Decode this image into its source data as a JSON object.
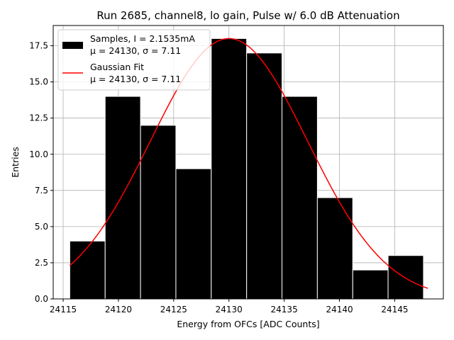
{
  "chart_data": {
    "type": "bar",
    "title": "Run 2685, channel8, lo gain, Pulse w/ 6.0 dB Attenuation",
    "xlabel": "Energy from OFCs [ADC Counts]",
    "ylabel": "Entries",
    "xlim": [
      24114.1,
      24149.4
    ],
    "ylim": [
      0,
      18.9
    ],
    "grid": true,
    "legend_position": "top-left",
    "x_ticks": [
      24115,
      24120,
      24125,
      24130,
      24135,
      24140,
      24145
    ],
    "x_tick_labels": [
      "24115",
      "24120",
      "24125",
      "24130",
      "24135",
      "24140",
      "24145"
    ],
    "y_ticks": [
      0,
      2.5,
      5,
      7.5,
      10,
      12.5,
      15,
      17.5
    ],
    "y_tick_labels": [
      "0.0",
      "2.5",
      "5.0",
      "7.5",
      "10.0",
      "12.5",
      "15.0",
      "17.5"
    ],
    "histogram": {
      "name": "Samples, I = 2.1535mA",
      "stats_label": "μ = 24130, σ = 7.11",
      "color": "#000000",
      "edgecolor": "#ffffff",
      "bin_edges": [
        24115.6,
        24118.8,
        24122.0,
        24125.2,
        24128.4,
        24131.6,
        24134.8,
        24138.0,
        24141.2,
        24144.4,
        24147.6
      ],
      "counts": [
        4,
        14,
        12,
        9,
        18,
        17,
        14,
        7,
        2,
        3
      ]
    },
    "fit": {
      "name": "Gaussian Fit",
      "stats_label": "μ = 24130, σ = 7.11",
      "color": "#ff0000",
      "mu": 24130,
      "sigma": 7.11,
      "amplitude": 18.0,
      "x_range": [
        24115.6,
        24148.0
      ]
    }
  }
}
